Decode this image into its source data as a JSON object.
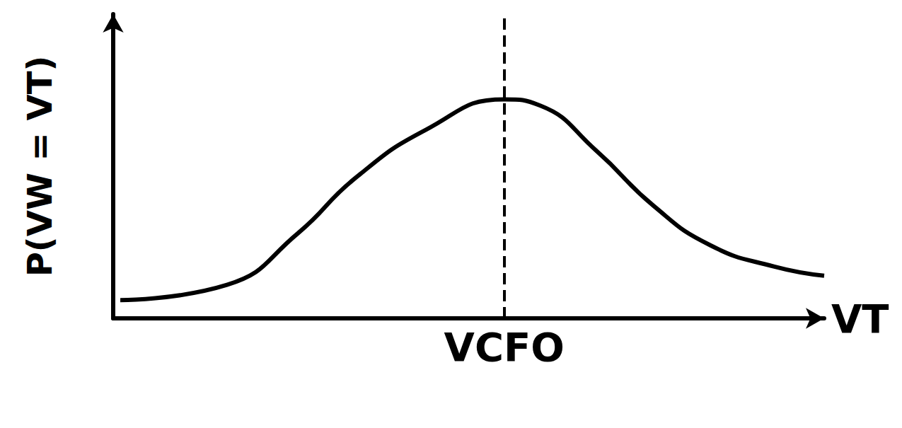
{
  "chart_data": {
    "type": "line",
    "y_label": "P(VW = VT)",
    "x_label": "VT",
    "x": [
      0.1,
      1.6,
      2.6,
      3.4,
      4.4,
      5.5,
      6.0,
      6.8,
      7.6,
      8.4,
      9.3,
      10.0
    ],
    "values": [
      0.06,
      0.11,
      0.28,
      0.46,
      0.62,
      0.72,
      0.7,
      0.55,
      0.37,
      0.24,
      0.17,
      0.14
    ],
    "color": "#000000",
    "xlim": [
      0,
      10
    ],
    "ylim": [
      0,
      1
    ],
    "xticks": [],
    "yticks": [],
    "tick_labels": false,
    "grid": false,
    "vline": {
      "x": 5.5,
      "label": "VCFO",
      "line_style": "dashed"
    }
  }
}
